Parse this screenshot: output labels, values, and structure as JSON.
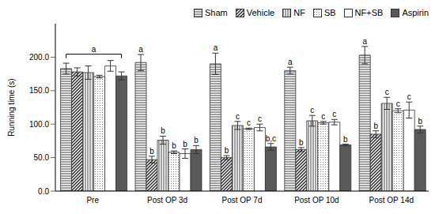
{
  "chart_data": {
    "type": "bar",
    "y_label": "Running time (s)",
    "categories": [
      "Pre",
      "Post OP 3d",
      "Post OP 7d",
      "Post OP 10d",
      "Post OP 14d"
    ],
    "series": [
      {
        "name": "Sham",
        "color": "#404040",
        "values": [
          183,
          192,
          190,
          180,
          203
        ],
        "errors": [
          8,
          12,
          16,
          5,
          13
        ],
        "letters": [
          null,
          "a",
          "a",
          "a",
          "a"
        ]
      },
      {
        "name": "Vehicle",
        "color": "#262626",
        "values": [
          178,
          47,
          50,
          62,
          85
        ],
        "errors": [
          6,
          5,
          3,
          3,
          5
        ],
        "letters": [
          null,
          "b",
          "b",
          "b",
          "b"
        ]
      },
      {
        "name": "NF",
        "color": "#404040",
        "values": [
          177,
          76,
          98,
          105,
          131
        ],
        "errors": [
          10,
          6,
          6,
          8,
          9
        ],
        "letters": [
          null,
          "b",
          "c",
          "c",
          "c"
        ]
      },
      {
        "name": "SB",
        "color": "#808080",
        "values": [
          171,
          58,
          93,
          102,
          120
        ],
        "errors": [
          2,
          2,
          1,
          2,
          3
        ],
        "letters": [
          null,
          "b",
          "c",
          "c",
          "c"
        ]
      },
      {
        "name": "NF+SB",
        "color": "#ffffff",
        "values": [
          187,
          56,
          95,
          103,
          121
        ],
        "errors": [
          8,
          7,
          5,
          4,
          12
        ],
        "letters": [
          null,
          "b",
          "c",
          "c",
          "c"
        ]
      },
      {
        "name": "Aspirin",
        "color": "#595959",
        "values": [
          172,
          62,
          66,
          69,
          92
        ],
        "errors": [
          6,
          6,
          5,
          1,
          5
        ],
        "letters": [
          null,
          "b",
          "b,c",
          "b",
          "b"
        ]
      }
    ],
    "annotations": [
      {
        "category": "Pre",
        "text": "a"
      }
    ],
    "ylim": [
      0,
      250
    ],
    "yticks": [
      {
        "value": 0,
        "label": "0.0"
      },
      {
        "value": 50,
        "label": "50.0"
      },
      {
        "value": 100,
        "label": "100.0"
      },
      {
        "value": 150,
        "label": "150.0"
      },
      {
        "value": 200,
        "label": "200.0"
      }
    ],
    "grid": false,
    "legend": "top"
  }
}
